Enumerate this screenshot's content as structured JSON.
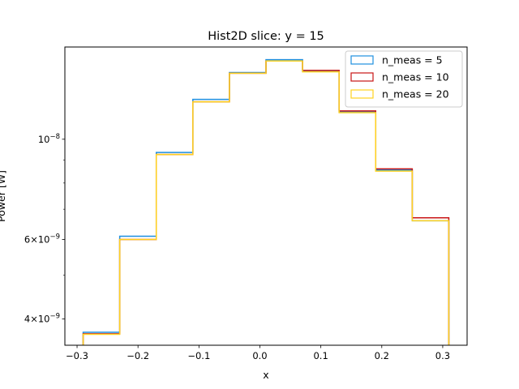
{
  "chart_data": {
    "type": "step-histogram",
    "title": "Hist2D slice: y = 15",
    "xlabel": "x",
    "ylabel": "Power [W]",
    "xlim": [
      -0.32,
      0.34
    ],
    "ylim": [
      3.5e-09,
      1.6e-08
    ],
    "yscale": "log",
    "bin_edges": [
      -0.29,
      -0.23,
      -0.17,
      -0.11,
      -0.05,
      0.01,
      0.07,
      0.13,
      0.19,
      0.25,
      0.31
    ],
    "x_ticks": [
      {
        "value": -0.3,
        "label": "−0.3"
      },
      {
        "value": -0.2,
        "label": "−0.2"
      },
      {
        "value": -0.1,
        "label": "−0.1"
      },
      {
        "value": 0.0,
        "label": "0.0"
      },
      {
        "value": 0.1,
        "label": "0.1"
      },
      {
        "value": 0.2,
        "label": "0.2"
      },
      {
        "value": 0.3,
        "label": "0.3"
      }
    ],
    "y_major_ticks": [
      {
        "value": 4e-09,
        "label_mantissa": "4",
        "label_base": "10",
        "label_exp": "−9"
      },
      {
        "value": 6e-09,
        "label_mantissa": "6",
        "label_base": "10",
        "label_exp": "−9"
      },
      {
        "value": 1e-08,
        "label_mantissa": "",
        "label_base": "10",
        "label_exp": "−8"
      }
    ],
    "y_minor_ticks": [
      5e-09,
      7e-09,
      8e-09,
      9e-09
    ],
    "series": [
      {
        "name": "n_meas = 5",
        "color": "#1f8fe0",
        "values": [
          3.74e-09,
          6.1e-09,
          9.35e-09,
          1.225e-08,
          1.405e-08,
          1.5e-08,
          1.415e-08,
          1.15e-08,
          8.55e-09,
          6.6e-09
        ]
      },
      {
        "name": "n_meas = 10",
        "color": "#c81414",
        "values": [
          3.71e-09,
          6e-09,
          9.25e-09,
          1.21e-08,
          1.4e-08,
          1.49e-08,
          1.42e-08,
          1.155e-08,
          8.6e-09,
          6.7e-09
        ]
      },
      {
        "name": "n_meas = 20",
        "color": "#ffd21f",
        "values": [
          3.7e-09,
          6e-09,
          9.25e-09,
          1.21e-08,
          1.4e-08,
          1.49e-08,
          1.41e-08,
          1.145e-08,
          8.5e-09,
          6.6e-09
        ]
      }
    ],
    "legend_position": "top-right",
    "grid": false
  }
}
